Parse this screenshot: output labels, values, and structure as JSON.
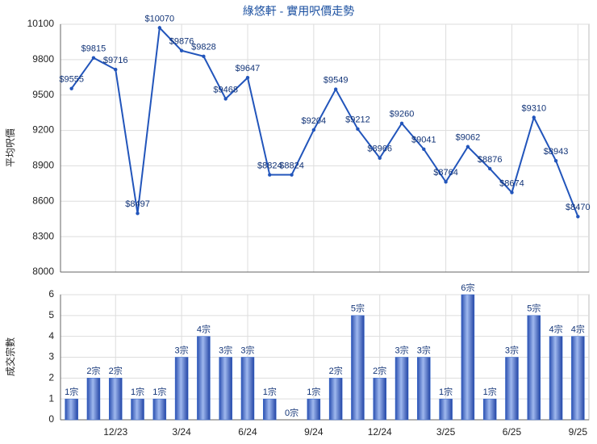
{
  "chart_data": [
    {
      "type": "line",
      "title": "綠悠軒 - 實用呎價走勢",
      "y_label": "平均呎價",
      "color": "#2255bb",
      "grid": true,
      "values": [
        9555,
        9815,
        9716,
        8497,
        10070,
        9876,
        9828,
        9468,
        9647,
        8824,
        8824,
        9204,
        9549,
        9212,
        8966,
        9260,
        9041,
        8764,
        9062,
        8876,
        8674,
        9310,
        8943,
        8470
      ],
      "value_labels": [
        "$9555",
        "$9815",
        "$9716",
        "$8497",
        "$10070",
        "$9876",
        "$9828",
        "$9468",
        "$9647",
        "$8824",
        "$8824",
        "$9204",
        "$9549",
        "$9212",
        "$8966",
        "$9260",
        "$9041",
        "$8764",
        "$9062",
        "$8876",
        "$8674",
        "$9310",
        "$8943",
        "$8470"
      ],
      "ylim": [
        8000,
        10100
      ],
      "yticks": [
        8000,
        8300,
        8600,
        8900,
        9200,
        9500,
        9800,
        10100
      ]
    },
    {
      "type": "bar",
      "y_label": "成交宗數",
      "color": "#3366cc",
      "grid": true,
      "categories": [
        null,
        null,
        "12/23",
        null,
        null,
        "3/24",
        null,
        null,
        "6/24",
        null,
        null,
        "9/24",
        null,
        null,
        "12/24",
        null,
        null,
        "3/25",
        null,
        null,
        "6/25",
        null,
        null,
        "9/25"
      ],
      "values": [
        1,
        2,
        2,
        1,
        1,
        3,
        4,
        3,
        3,
        1,
        0,
        1,
        2,
        5,
        2,
        3,
        3,
        1,
        6,
        1,
        3,
        5,
        4,
        4
      ],
      "value_labels": [
        "1宗",
        "2宗",
        "2宗",
        "1宗",
        "1宗",
        "3宗",
        "4宗",
        "3宗",
        "3宗",
        "1宗",
        "0宗",
        "1宗",
        "2宗",
        "5宗",
        "2宗",
        "3宗",
        "3宗",
        "1宗",
        "6宗",
        "1宗",
        "3宗",
        "5宗",
        "4宗",
        "4宗"
      ],
      "ylim": [
        0,
        6
      ],
      "yticks": [
        0,
        1,
        2,
        3,
        4,
        5,
        6
      ]
    }
  ]
}
